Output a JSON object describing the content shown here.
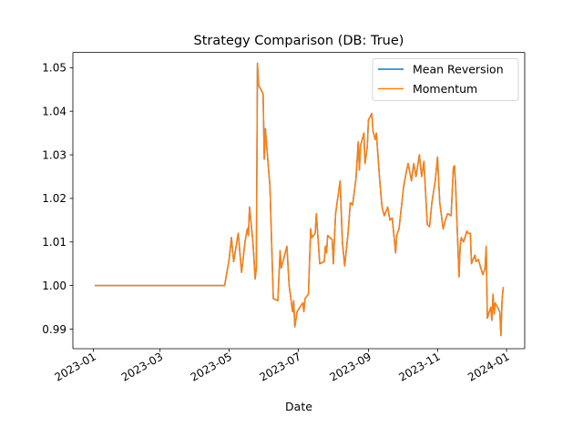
{
  "chart_data": {
    "type": "line",
    "title": "Strategy Comparison (DB: True)",
    "xlabel": "Date",
    "ylabel": "",
    "xlim": [
      "2022-12-14",
      "2024-01-17"
    ],
    "ylim": [
      0.9855,
      1.0535
    ],
    "x_ticks": [
      {
        "date": "2023-01-01",
        "label": "2023-01"
      },
      {
        "date": "2023-03-01",
        "label": "2023-03"
      },
      {
        "date": "2023-05-01",
        "label": "2023-05"
      },
      {
        "date": "2023-07-01",
        "label": "2023-07"
      },
      {
        "date": "2023-09-01",
        "label": "2023-09"
      },
      {
        "date": "2023-11-01",
        "label": "2023-11"
      },
      {
        "date": "2024-01-01",
        "label": "2024-01"
      }
    ],
    "y_ticks": [
      {
        "value": 0.99,
        "label": "0.99"
      },
      {
        "value": 1.0,
        "label": "1.00"
      },
      {
        "value": 1.01,
        "label": "1.01"
      },
      {
        "value": 1.02,
        "label": "1.02"
      },
      {
        "value": 1.03,
        "label": "1.03"
      },
      {
        "value": 1.04,
        "label": "1.04"
      },
      {
        "value": 1.05,
        "label": "1.05"
      }
    ],
    "grid": false,
    "legend_position": "top-right",
    "series": [
      {
        "name": "Mean Reversion",
        "color": "#1f77b4",
        "ref": "shared"
      },
      {
        "name": "Momentum",
        "color": "#ff7f0e",
        "ref": "shared"
      }
    ],
    "shared_points": [
      [
        "2023-01-03",
        1.0
      ],
      [
        "2023-04-27",
        1.0
      ],
      [
        "2023-05-01",
        1.006
      ],
      [
        "2023-05-03",
        1.011
      ],
      [
        "2023-05-05",
        1.0055
      ],
      [
        "2023-05-09",
        1.012
      ],
      [
        "2023-05-12",
        1.003
      ],
      [
        "2023-05-15",
        1.01
      ],
      [
        "2023-05-17",
        1.013
      ],
      [
        "2023-05-18",
        1.0115
      ],
      [
        "2023-05-19",
        1.018
      ],
      [
        "2023-05-22",
        1.01
      ],
      [
        "2023-05-24",
        1.0015
      ],
      [
        "2023-05-25",
        1.004
      ],
      [
        "2023-05-26",
        1.051
      ],
      [
        "2023-05-27",
        1.046
      ],
      [
        "2023-05-31",
        1.044
      ],
      [
        "2023-06-01",
        1.029
      ],
      [
        "2023-06-02",
        1.036
      ],
      [
        "2023-06-05",
        1.026
      ],
      [
        "2023-06-06",
        1.023
      ],
      [
        "2023-06-09",
        0.997
      ],
      [
        "2023-06-13",
        0.9965
      ],
      [
        "2023-06-15",
        1.008
      ],
      [
        "2023-06-16",
        1.004
      ],
      [
        "2023-06-19",
        1.007
      ],
      [
        "2023-06-21",
        1.009
      ],
      [
        "2023-06-23",
        1.0
      ],
      [
        "2023-06-26",
        0.994
      ],
      [
        "2023-06-27",
        0.9965
      ],
      [
        "2023-06-28",
        0.9905
      ],
      [
        "2023-06-30",
        0.994
      ],
      [
        "2023-07-05",
        0.996
      ],
      [
        "2023-07-06",
        0.994
      ],
      [
        "2023-07-07",
        0.997
      ],
      [
        "2023-07-10",
        0.998
      ],
      [
        "2023-07-12",
        1.013
      ],
      [
        "2023-07-13",
        1.011
      ],
      [
        "2023-07-16",
        1.012
      ],
      [
        "2023-07-17",
        1.0165
      ],
      [
        "2023-07-20",
        1.005
      ],
      [
        "2023-07-24",
        1.0055
      ],
      [
        "2023-07-25",
        1.009
      ],
      [
        "2023-07-26",
        1.0075
      ],
      [
        "2023-07-27",
        1.0115
      ],
      [
        "2023-07-31",
        1.0105
      ],
      [
        "2023-08-01",
        1.005
      ],
      [
        "2023-08-03",
        1.0165
      ],
      [
        "2023-08-07",
        1.024
      ],
      [
        "2023-08-09",
        1.01
      ],
      [
        "2023-08-11",
        1.0045
      ],
      [
        "2023-08-14",
        1.012
      ],
      [
        "2023-08-16",
        1.019
      ],
      [
        "2023-08-18",
        1.0185
      ],
      [
        "2023-08-21",
        1.0245
      ],
      [
        "2023-08-23",
        1.033
      ],
      [
        "2023-08-24",
        1.0265
      ],
      [
        "2023-08-25",
        1.032
      ],
      [
        "2023-08-28",
        1.035
      ],
      [
        "2023-08-29",
        1.028
      ],
      [
        "2023-08-31",
        1.032
      ],
      [
        "2023-09-01",
        1.038
      ],
      [
        "2023-09-04",
        1.0395
      ],
      [
        "2023-09-05",
        1.0355
      ],
      [
        "2023-09-07",
        1.0335
      ],
      [
        "2023-09-08",
        1.035
      ],
      [
        "2023-09-11",
        1.024
      ],
      [
        "2023-09-13",
        1.018
      ],
      [
        "2023-09-15",
        1.016
      ],
      [
        "2023-09-18",
        1.018
      ],
      [
        "2023-09-20",
        1.015
      ],
      [
        "2023-09-22",
        1.0155
      ],
      [
        "2023-09-25",
        1.0075
      ],
      [
        "2023-09-26",
        1.0115
      ],
      [
        "2023-09-28",
        1.013
      ],
      [
        "2023-10-02",
        1.0225
      ],
      [
        "2023-10-04",
        1.0255
      ],
      [
        "2023-10-06",
        1.028
      ],
      [
        "2023-10-09",
        1.024
      ],
      [
        "2023-10-11",
        1.028
      ],
      [
        "2023-10-13",
        1.025
      ],
      [
        "2023-10-16",
        1.03
      ],
      [
        "2023-10-18",
        1.025
      ],
      [
        "2023-10-20",
        1.0285
      ],
      [
        "2023-10-23",
        1.014
      ],
      [
        "2023-10-25",
        1.0135
      ],
      [
        "2023-10-27",
        1.019
      ],
      [
        "2023-10-30",
        1.024
      ],
      [
        "2023-11-01",
        1.0295
      ],
      [
        "2023-11-03",
        1.019
      ],
      [
        "2023-11-06",
        1.013
      ],
      [
        "2023-11-08",
        1.015
      ],
      [
        "2023-11-10",
        1.0165
      ],
      [
        "2023-11-13",
        1.016
      ],
      [
        "2023-11-15",
        1.027
      ],
      [
        "2023-11-16",
        1.0275
      ],
      [
        "2023-11-17",
        1.023
      ],
      [
        "2023-11-20",
        1.002
      ],
      [
        "2023-11-21",
        1.009
      ],
      [
        "2023-11-22",
        1.011
      ],
      [
        "2023-11-24",
        1.01
      ],
      [
        "2023-11-27",
        1.0125
      ],
      [
        "2023-11-28",
        1.012
      ],
      [
        "2023-11-30",
        1.012
      ],
      [
        "2023-12-01",
        1.005
      ],
      [
        "2023-12-04",
        1.007
      ],
      [
        "2023-12-05",
        1.0055
      ],
      [
        "2023-12-07",
        1.006
      ],
      [
        "2023-12-11",
        1.0025
      ],
      [
        "2023-12-13",
        1.004
      ],
      [
        "2023-12-14",
        1.009
      ],
      [
        "2023-12-15",
        0.9925
      ],
      [
        "2023-12-18",
        0.995
      ],
      [
        "2023-12-19",
        0.992
      ],
      [
        "2023-12-20",
        0.998
      ],
      [
        "2023-12-21",
        0.9935
      ],
      [
        "2023-12-22",
        0.996
      ],
      [
        "2023-12-26",
        0.994
      ],
      [
        "2023-12-27",
        0.9885
      ],
      [
        "2023-12-28",
        0.9965
      ],
      [
        "2023-12-29",
        0.9995
      ]
    ]
  }
}
